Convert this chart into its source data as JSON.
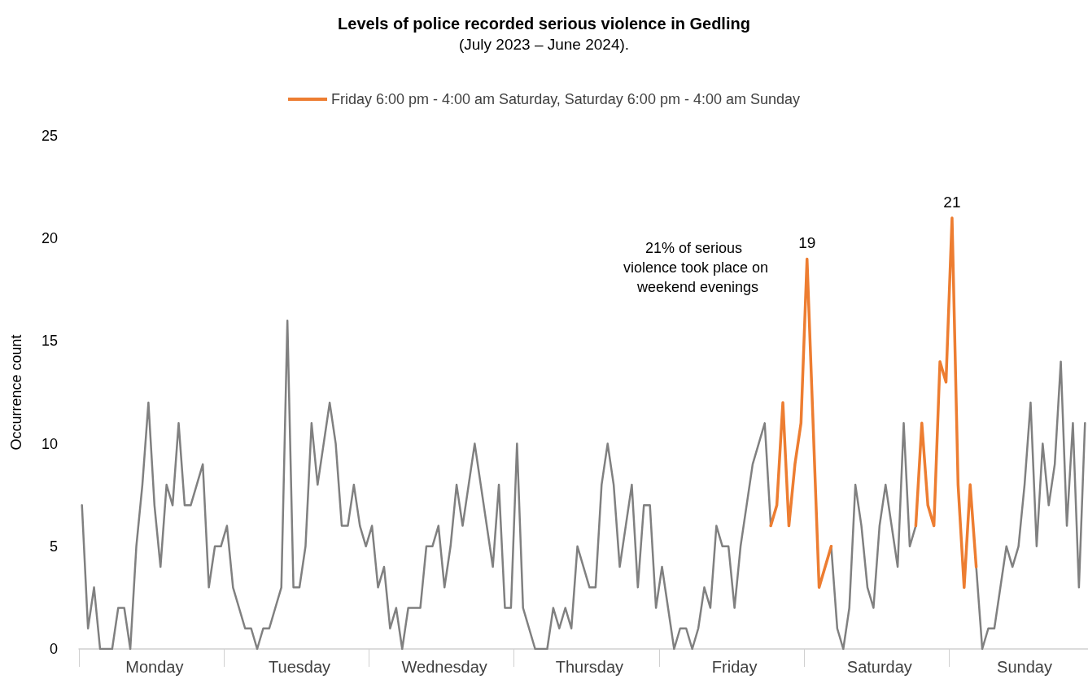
{
  "chart_data": {
    "type": "line",
    "title": "Levels of police recorded serious violence in Gedling",
    "subtitle": "(July 2023 – June 2024).",
    "ylabel": "Occurrence count",
    "categories": [
      null,
      null,
      null,
      null,
      null,
      null,
      null,
      null,
      null,
      null,
      null,
      null,
      "Monday",
      null,
      null,
      null,
      null,
      null,
      null,
      null,
      null,
      null,
      null,
      null,
      null,
      null,
      null,
      null,
      null,
      null,
      null,
      null,
      null,
      null,
      null,
      null,
      "Tuesday",
      null,
      null,
      null,
      null,
      null,
      null,
      null,
      null,
      null,
      null,
      null,
      null,
      null,
      null,
      null,
      null,
      null,
      null,
      null,
      null,
      null,
      null,
      null,
      "Wednesday",
      null,
      null,
      null,
      null,
      null,
      null,
      null,
      null,
      null,
      null,
      null,
      null,
      null,
      null,
      null,
      null,
      null,
      null,
      null,
      null,
      null,
      null,
      null,
      "Thursday",
      null,
      null,
      null,
      null,
      null,
      null,
      null,
      null,
      null,
      null,
      null,
      null,
      null,
      null,
      null,
      null,
      null,
      null,
      null,
      null,
      null,
      null,
      null,
      "Friday",
      null,
      null,
      null,
      null,
      null,
      null,
      null,
      null,
      null,
      null,
      null,
      null,
      null,
      null,
      null,
      null,
      null,
      null,
      null,
      null,
      null,
      null,
      null,
      "Saturday",
      null,
      null,
      null,
      null,
      null,
      null,
      null,
      null,
      null,
      null,
      null,
      null,
      null,
      null,
      null,
      null,
      null,
      null,
      null,
      null,
      null,
      null,
      null,
      "Sunday",
      null,
      null,
      null,
      null,
      null,
      null,
      null,
      null,
      null,
      null
    ],
    "series": [
      {
        "color": "#808080",
        "values": [
          7,
          1,
          3,
          0,
          0,
          0,
          2,
          2,
          0,
          5,
          8,
          12,
          7,
          4,
          8,
          7,
          11,
          7,
          7,
          8,
          9,
          3,
          5,
          5,
          6,
          3,
          2,
          1,
          1,
          0,
          1,
          1,
          2,
          3,
          16,
          3,
          3,
          5,
          11,
          8,
          10,
          12,
          10,
          6,
          6,
          8,
          6,
          5,
          6,
          3,
          4,
          1,
          2,
          0,
          2,
          2,
          2,
          5,
          5,
          6,
          3,
          5,
          8,
          6,
          8,
          10,
          8,
          6,
          4,
          8,
          2,
          2,
          10,
          2,
          1,
          0,
          0,
          0,
          2,
          1,
          2,
          1,
          5,
          4,
          3,
          3,
          8,
          10,
          8,
          4,
          6,
          8,
          3,
          7,
          7,
          2,
          4,
          2,
          0,
          1,
          1,
          0,
          1,
          3,
          2,
          6,
          5,
          5,
          2,
          5,
          7,
          9,
          10,
          11,
          6,
          null,
          null,
          null,
          null,
          null,
          null,
          null,
          null,
          null,
          5,
          1,
          0,
          2,
          8,
          6,
          3,
          2,
          6,
          8,
          6,
          4,
          11,
          5,
          6,
          null,
          null,
          null,
          null,
          null,
          null,
          null,
          null,
          null,
          4,
          0,
          1,
          1,
          3,
          5,
          4,
          5,
          8,
          12,
          5,
          10,
          7,
          9,
          14,
          6,
          11,
          3,
          11
        ]
      },
      {
        "name": "Friday 6:00 pm - 4:00 am Saturday, Saturday 6:00 pm - 4:00 am Sunday",
        "color": "#ed7d31",
        "values": [
          null,
          null,
          null,
          null,
          null,
          null,
          null,
          null,
          null,
          null,
          null,
          null,
          null,
          null,
          null,
          null,
          null,
          null,
          null,
          null,
          null,
          null,
          null,
          null,
          null,
          null,
          null,
          null,
          null,
          null,
          null,
          null,
          null,
          null,
          null,
          null,
          null,
          null,
          null,
          null,
          null,
          null,
          null,
          null,
          null,
          null,
          null,
          null,
          null,
          null,
          null,
          null,
          null,
          null,
          null,
          null,
          null,
          null,
          null,
          null,
          null,
          null,
          null,
          null,
          null,
          null,
          null,
          null,
          null,
          null,
          null,
          null,
          null,
          null,
          null,
          null,
          null,
          null,
          null,
          null,
          null,
          null,
          null,
          null,
          null,
          null,
          null,
          null,
          null,
          null,
          null,
          null,
          null,
          null,
          null,
          null,
          null,
          null,
          null,
          null,
          null,
          null,
          null,
          null,
          null,
          null,
          null,
          null,
          null,
          null,
          null,
          null,
          null,
          null,
          6,
          7,
          12,
          6,
          9,
          11,
          19,
          11,
          3,
          4,
          5,
          null,
          null,
          null,
          null,
          null,
          null,
          null,
          null,
          null,
          null,
          null,
          null,
          null,
          6,
          11,
          7,
          6,
          14,
          13,
          21,
          8,
          3,
          8,
          4,
          null,
          null,
          null,
          null,
          null,
          null,
          null,
          null,
          null,
          null,
          null,
          null,
          null,
          null,
          null,
          null,
          null,
          null
        ],
        "value_labels": [
          null,
          null,
          null,
          null,
          null,
          null,
          null,
          null,
          null,
          null,
          null,
          null,
          null,
          null,
          null,
          null,
          null,
          null,
          null,
          null,
          null,
          null,
          null,
          null,
          null,
          null,
          null,
          null,
          null,
          null,
          null,
          null,
          null,
          null,
          null,
          null,
          null,
          null,
          null,
          null,
          null,
          null,
          null,
          null,
          null,
          null,
          null,
          null,
          null,
          null,
          null,
          null,
          null,
          null,
          null,
          null,
          null,
          null,
          null,
          null,
          null,
          null,
          null,
          null,
          null,
          null,
          null,
          null,
          null,
          null,
          null,
          null,
          null,
          null,
          null,
          null,
          null,
          null,
          null,
          null,
          null,
          null,
          null,
          null,
          null,
          null,
          null,
          null,
          null,
          null,
          null,
          null,
          null,
          null,
          null,
          null,
          null,
          null,
          null,
          null,
          null,
          null,
          null,
          null,
          null,
          null,
          null,
          null,
          null,
          null,
          null,
          null,
          null,
          null,
          null,
          null,
          null,
          null,
          null,
          null,
          "19",
          null,
          null,
          null,
          null,
          null,
          null,
          null,
          null,
          null,
          null,
          null,
          null,
          null,
          null,
          null,
          null,
          null,
          null,
          null,
          null,
          null,
          null,
          null,
          "21",
          null,
          null,
          null,
          null,
          null,
          null,
          null,
          null,
          null,
          null,
          null,
          null,
          null,
          null,
          null,
          null,
          null,
          null,
          null,
          null,
          null,
          null
        ]
      }
    ],
    "ylim": [
      0,
      25
    ],
    "yticks": [
      0,
      5,
      10,
      15,
      20,
      25
    ],
    "grid": false,
    "legend": "top",
    "marker": "none",
    "line_style": "solid",
    "annotations": [
      "21% of serious violence took place on weekend evenings"
    ]
  }
}
